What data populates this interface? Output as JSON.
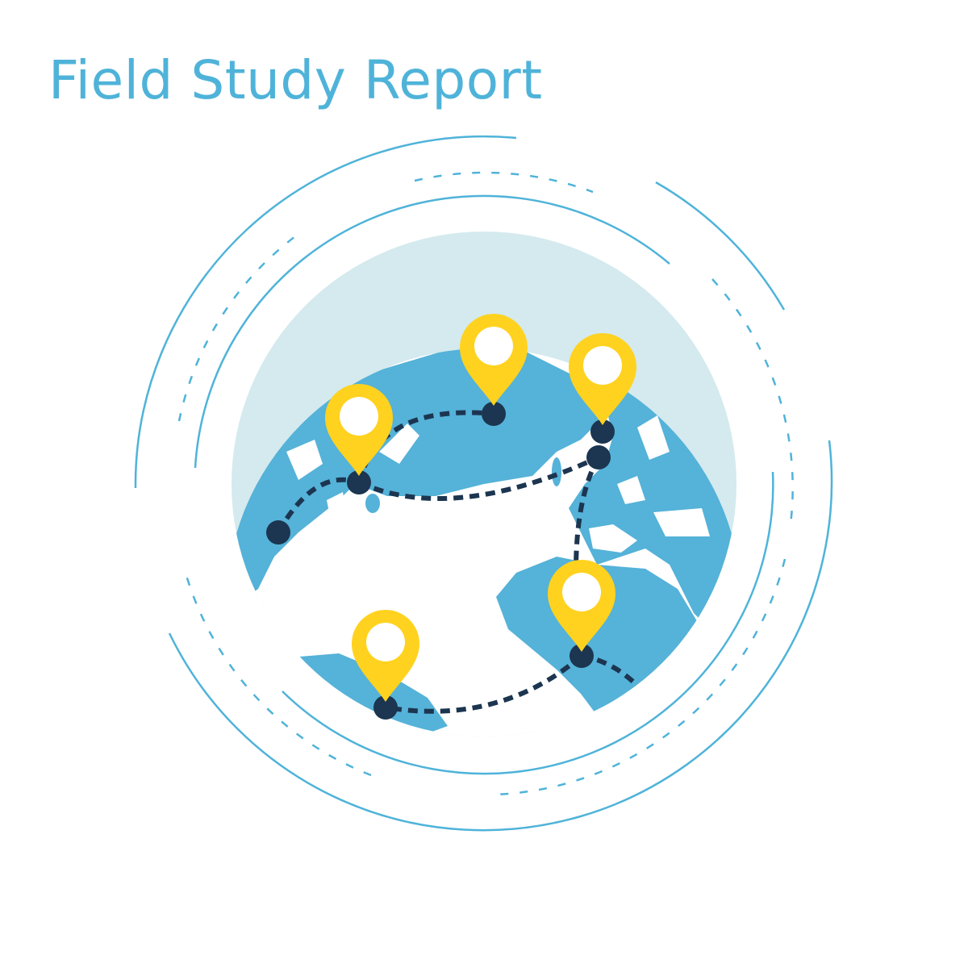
{
  "header": {
    "title": "Field Study Report"
  },
  "colors": {
    "title": "#4fb3d9",
    "ring": "#4fb3d9",
    "globe_backdrop": "#d4eaee",
    "land": "#55b2d8",
    "ocean": "#ffffff",
    "route": "#1c3550",
    "pin": "#ffd21f",
    "pin_center": "#ffffff"
  },
  "icons": {
    "globe": "globe-icon",
    "pin": "map-pin-icon",
    "waypoint": "waypoint-dot-icon"
  }
}
